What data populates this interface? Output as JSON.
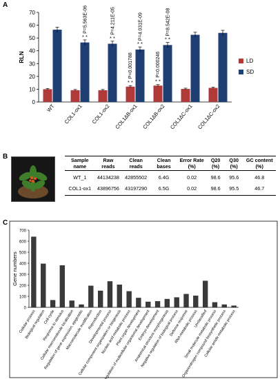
{
  "panels": {
    "a": "A",
    "b": "B",
    "c": "C"
  },
  "chart_data": [
    {
      "type": "bar",
      "ylabel": "RLN",
      "ylim": [
        0,
        70
      ],
      "yticks": [
        0,
        10,
        20,
        30,
        40,
        50,
        60,
        70
      ],
      "categories": [
        "WT",
        "COL1-ox1",
        "COL1-ox2",
        "COL1ΔB-ox1",
        "COL1ΔB-ox2",
        "COL1ΔC-ox1",
        "COL1ΔC-ox2"
      ],
      "series": [
        {
          "name": "LD",
          "color": "#b03a3a",
          "values": [
            10,
            9.2,
            9.2,
            12,
            12.8,
            10.2,
            11
          ],
          "errors": [
            0.6,
            0.6,
            0.6,
            0.8,
            0.8,
            0.6,
            0.6
          ]
        },
        {
          "name": "SD",
          "color": "#1f3f74",
          "values": [
            56.5,
            46.5,
            45.5,
            41,
            44.5,
            52.5,
            54
          ],
          "errors": [
            2,
            2,
            2,
            2,
            2,
            2,
            2
          ]
        }
      ],
      "sd_pvalues": [
        "",
        "P=5.563E-06",
        "P=4.211E-05",
        "P=4.031E-09",
        "P=8.542E-08",
        "",
        ""
      ],
      "ld_pvalues": [
        "",
        "",
        "",
        "P=0.001788",
        "P=0.000246",
        "",
        ""
      ],
      "sd_stars": [
        "",
        "* *",
        "* *",
        "* *",
        "* *",
        "",
        ""
      ],
      "ld_stars": [
        "",
        "",
        "",
        "* *",
        "* *",
        "",
        ""
      ],
      "legend": {
        "position": "right",
        "entries": [
          "LD",
          "SD"
        ]
      },
      "grid": false
    },
    {
      "type": "bar",
      "ylabel": "Gene numbers",
      "ylim": [
        0,
        700
      ],
      "yticks": [
        0,
        100,
        200,
        300,
        400,
        500,
        600,
        700
      ],
      "color": "#3a3a3a",
      "categories": [
        "Cellular process",
        "Biological regulation",
        "Cell cycle",
        "Response to stimulus",
        "Cellular macromolecule localization",
        "Regulation of gene expression, epigenetic",
        "Macromolecule modification",
        "Reproduction",
        "Developmental process",
        "Cellular component organization or biogenesis",
        "Nucleic acid metabolic process",
        "Plant organ development",
        "Regulation of multicellular organismal development",
        "Embryo development",
        "Anatomical structure morphogenesis",
        "Negative regulation of biological process",
        "Defense response",
        "RNA metabolic process",
        "Unclassified",
        "Small molecule metabolic process",
        "Organonitrogen compound biosynthetic process",
        "Cellular amide metabolic process"
      ],
      "values": [
        640,
        395,
        65,
        380,
        60,
        25,
        195,
        150,
        235,
        205,
        145,
        85,
        50,
        55,
        75,
        90,
        120,
        105,
        240,
        45,
        25,
        15
      ],
      "grid": false
    }
  ],
  "table": {
    "headers": [
      "Sample name",
      "Raw reads",
      "Clean reads",
      "Clean bases",
      "Error Rate (%)",
      "Q20 (%)",
      "Q30 (%)",
      "GC content (%)"
    ],
    "rows": [
      [
        "WT_1",
        "44134238",
        "42855502",
        "6.4G",
        "0.02",
        "98.6",
        "95.6",
        "46.8"
      ],
      [
        "COL1-ox1",
        "43896756",
        "43197290",
        "6.5G",
        "0.02",
        "98.6",
        "95.5",
        "46.7"
      ]
    ]
  }
}
